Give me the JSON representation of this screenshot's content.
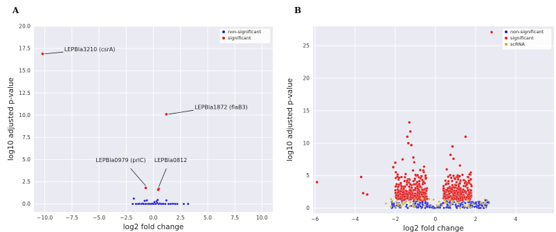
{
  "panels": {
    "A": {
      "letter": "A"
    },
    "B": {
      "letter": "B"
    }
  },
  "colors": {
    "plot_bg": "#eaeaf2",
    "grid": "#ffffff",
    "non_significant": "#1f1fd6",
    "significant": "#e01c1c",
    "scRNA": "#c8b228"
  },
  "chart_data": [
    {
      "type": "scatter",
      "panel": "A",
      "xlabel": "log2 fold change",
      "ylabel": "log10 adjusted p-value",
      "xlim": [
        -11,
        11
      ],
      "ylim": [
        -0.9,
        20
      ],
      "xticks": [
        -10.0,
        -7.5,
        -5.0,
        -2.5,
        0.0,
        2.5,
        5.0,
        7.5,
        10.0
      ],
      "xtick_labels": [
        "−10.0",
        "−7.5",
        "−5.0",
        "−2.5",
        "0.0",
        "2.5",
        "5.0",
        "7.5",
        "10.0"
      ],
      "yticks": [
        0.0,
        2.5,
        5.0,
        7.5,
        10.0,
        12.5,
        15.0,
        17.5,
        20.0
      ],
      "ytick_labels": [
        "0.0",
        "2.5",
        "5.0",
        "7.5",
        "10.0",
        "12.5",
        "15.0",
        "17.5",
        "20.0"
      ],
      "grid": true,
      "legend_position": "top-right",
      "legend": [
        {
          "label": "non-significant",
          "color_key": "non_significant"
        },
        {
          "label": "significant",
          "color_key": "significant"
        }
      ],
      "series": [
        {
          "name": "non-significant",
          "points": [
            [
              -1.8,
              0.6
            ],
            [
              -1.6,
              0.0
            ],
            [
              -1.4,
              0.0
            ],
            [
              -1.3,
              0.02
            ],
            [
              -1.1,
              0.0
            ],
            [
              -1.0,
              0.05
            ],
            [
              -0.9,
              0.0
            ],
            [
              -0.8,
              0.35
            ],
            [
              -0.7,
              0.0
            ],
            [
              -0.6,
              0.4
            ],
            [
              -0.5,
              0.0
            ],
            [
              -0.4,
              0.02
            ],
            [
              -0.3,
              0.0
            ],
            [
              -0.2,
              0.0
            ],
            [
              -0.1,
              0.03
            ],
            [
              0.0,
              0.0
            ],
            [
              0.1,
              0.2
            ],
            [
              0.2,
              0.0
            ],
            [
              0.3,
              0.3
            ],
            [
              0.4,
              0.45
            ],
            [
              0.5,
              0.0
            ],
            [
              0.6,
              0.05
            ],
            [
              0.7,
              0.0
            ],
            [
              0.8,
              0.0
            ],
            [
              0.9,
              0.02
            ],
            [
              1.1,
              0.0
            ],
            [
              1.2,
              0.4
            ],
            [
              1.4,
              0.0
            ],
            [
              1.6,
              0.0
            ],
            [
              1.8,
              0.02
            ],
            [
              2.0,
              0.0
            ],
            [
              2.2,
              0.0
            ],
            [
              2.8,
              0.0
            ],
            [
              3.2,
              0.0
            ],
            [
              -1.9,
              0.0
            ],
            [
              0.35,
              0.1
            ]
          ]
        },
        {
          "name": "significant",
          "points": [
            [
              -10.2,
              16.9
            ],
            [
              1.2,
              10.1
            ],
            [
              -0.7,
              1.8
            ],
            [
              0.5,
              1.7
            ],
            [
              0.45,
              1.6
            ]
          ]
        }
      ],
      "annotations": [
        {
          "text": "LEPBla3210 (csrA)",
          "x": -10.2,
          "y": 16.9
        },
        {
          "text": "LEPBla1872 (flaB3)",
          "x": 1.2,
          "y": 10.1
        },
        {
          "text": "LEPBla0979 (prlC)",
          "x": -0.7,
          "y": 1.8
        },
        {
          "text": "LEPBla0812",
          "x": 0.5,
          "y": 1.7
        }
      ]
    },
    {
      "type": "scatter",
      "panel": "B",
      "xlabel": "log2 fold change",
      "ylabel": "log10 adjusted p-value",
      "xlim": [
        -6.1,
        5.9
      ],
      "ylim": [
        -0.8,
        28
      ],
      "xticks": [
        -6,
        -4,
        -2,
        0,
        2,
        4
      ],
      "xtick_labels": [
        "−6",
        "−4",
        "−2",
        "0",
        "2",
        "4"
      ],
      "yticks": [
        0,
        5,
        10,
        15,
        20,
        25
      ],
      "ytick_labels": [
        "0",
        "5",
        "10",
        "15",
        "20",
        "25"
      ],
      "grid": true,
      "legend_position": "top-right",
      "legend": [
        {
          "label": "non-significant",
          "color_key": "non_significant"
        },
        {
          "label": "significant",
          "color_key": "significant"
        },
        {
          "label": "scRNA",
          "color_key": "scRNA"
        }
      ],
      "series": [
        {
          "name": "significant_outliers",
          "points": [
            [
              -5.9,
              4.0
            ],
            [
              -3.7,
              4.8
            ],
            [
              -3.6,
              2.3
            ],
            [
              -3.4,
              2.1
            ],
            [
              -2.0,
              7.0
            ],
            [
              -2.1,
              6.3
            ],
            [
              -1.3,
              13.2
            ],
            [
              -1.25,
              11.8
            ],
            [
              -1.4,
              11.0
            ],
            [
              -1.35,
              10.0
            ],
            [
              -1.2,
              9.7
            ],
            [
              2.8,
              27.1
            ],
            [
              1.5,
              11.0
            ],
            [
              0.85,
              9.5
            ],
            [
              0.75,
              8.2
            ],
            [
              0.9,
              7.6
            ],
            [
              1.7,
              5.2
            ],
            [
              1.2,
              4.9
            ],
            [
              -1.1,
              7.8
            ]
          ]
        }
      ],
      "cluster_params": {
        "left_sig": {
          "x_range": [
            -2.0,
            -0.4
          ],
          "y_center": 2.2,
          "count": 260
        },
        "right_sig": {
          "x_range": [
            0.4,
            1.8
          ],
          "y_center": 2.2,
          "count": 260
        },
        "non_sig": {
          "x_range": [
            -2.2,
            2.7
          ],
          "count": 320
        },
        "scRNA": {
          "x_range": [
            -2.5,
            2.6
          ],
          "count": 60
        }
      }
    }
  ]
}
